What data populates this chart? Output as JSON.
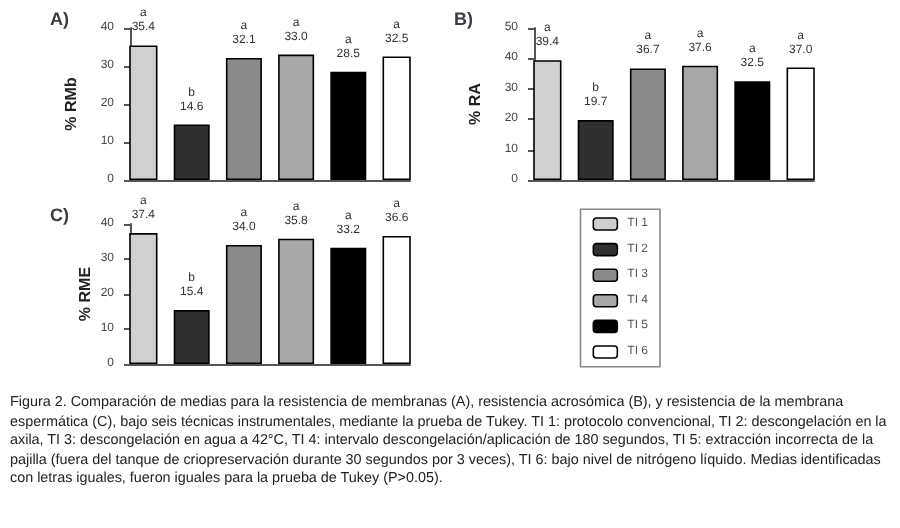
{
  "chart_data": [
    {
      "type": "bar",
      "title": "A)",
      "ylabel": "% RMb",
      "categories": [
        null
      ],
      "ylim": [
        0,
        40
      ],
      "yticks": [
        0,
        10,
        20,
        30,
        40
      ],
      "grid": false,
      "legend": false,
      "series": [
        {
          "color": "#d0d0d0",
          "values": [
            35.4
          ],
          "value_labels": [
            "a\n35.4"
          ]
        },
        {
          "color": "#303030",
          "values": [
            14.6
          ],
          "value_labels": [
            "b\n14.6"
          ]
        },
        {
          "color": "#8a8a8a",
          "values": [
            32.1
          ],
          "value_labels": [
            "a\n32.1"
          ]
        },
        {
          "color": "#a8a8a8",
          "values": [
            33.0
          ],
          "value_labels": [
            "a\n33.0"
          ]
        },
        {
          "color": "#000000",
          "values": [
            28.5
          ],
          "value_labels": [
            "a\n28.5"
          ]
        },
        {
          "color": "#ffffff",
          "values": [
            32.5
          ],
          "value_labels": [
            "a\n32.5"
          ]
        }
      ]
    },
    {
      "type": "bar",
      "title": "B)",
      "ylabel": "% RA",
      "categories": [
        null
      ],
      "ylim": [
        0,
        50
      ],
      "yticks": [
        0,
        10,
        20,
        30,
        40,
        50
      ],
      "grid": false,
      "legend": false,
      "series": [
        {
          "color": "#d0d0d0",
          "values": [
            39.4
          ],
          "value_labels": [
            "a\n39.4"
          ]
        },
        {
          "color": "#303030",
          "values": [
            19.7
          ],
          "value_labels": [
            "b\n19.7"
          ]
        },
        {
          "color": "#8a8a8a",
          "values": [
            36.7
          ],
          "value_labels": [
            "a\n36.7"
          ]
        },
        {
          "color": "#a8a8a8",
          "values": [
            37.6
          ],
          "value_labels": [
            "a\n37.6"
          ]
        },
        {
          "color": "#000000",
          "values": [
            32.5
          ],
          "value_labels": [
            "a\n32.5"
          ]
        },
        {
          "color": "#ffffff",
          "values": [
            37.0
          ],
          "value_labels": [
            "a\n37.0"
          ]
        }
      ]
    },
    {
      "type": "bar",
      "title": "C)",
      "ylabel": "% RME",
      "categories": [
        null
      ],
      "ylim": [
        0,
        40
      ],
      "yticks": [
        0,
        10,
        20,
        30,
        40
      ],
      "grid": false,
      "legend": "right",
      "annotations": [
        "Figura 2. Comparación de medias para la resistencia de membranas (A), resistencia acrosómica (B), y resistencia de la membrana espermática (C), bajo seis técnicas instrumentales, mediante la prueba de Tukey. TI 1: protocolo convencional, TI 2: descongelación en la axila, TI 3: descongelación en agua a 42°C, TI 4: intervalo descongelación/aplicación de 180 segundos, TI 5: extracción incorrecta de la pajilla (fuera del tanque de criopreservación durante 30 segundos por 3 veces), TI 6: bajo nivel de nitrógeno líquido. Medias identificadas con letras iguales, fueron iguales para la prueba de Tukey (P>0.05)."
      ],
      "series": [
        {
          "name": "TI 1",
          "color": "#d0d0d0",
          "values": [
            37.4
          ],
          "value_labels": [
            "a\n37.4"
          ]
        },
        {
          "name": "TI 2",
          "color": "#303030",
          "values": [
            15.4
          ],
          "value_labels": [
            "b\n15.4"
          ]
        },
        {
          "name": "TI 3",
          "color": "#8a8a8a",
          "values": [
            34.0
          ],
          "value_labels": [
            "a\n34.0"
          ]
        },
        {
          "name": "TI 4",
          "color": "#a8a8a8",
          "values": [
            35.8
          ],
          "value_labels": [
            "a\n35.8"
          ]
        },
        {
          "name": "TI 5",
          "color": "#000000",
          "values": [
            33.2
          ],
          "value_labels": [
            "a\n33.2"
          ]
        },
        {
          "name": "TI 6",
          "color": "#ffffff",
          "values": [
            36.6
          ],
          "value_labels": [
            "a\n36.6"
          ]
        }
      ]
    }
  ]
}
